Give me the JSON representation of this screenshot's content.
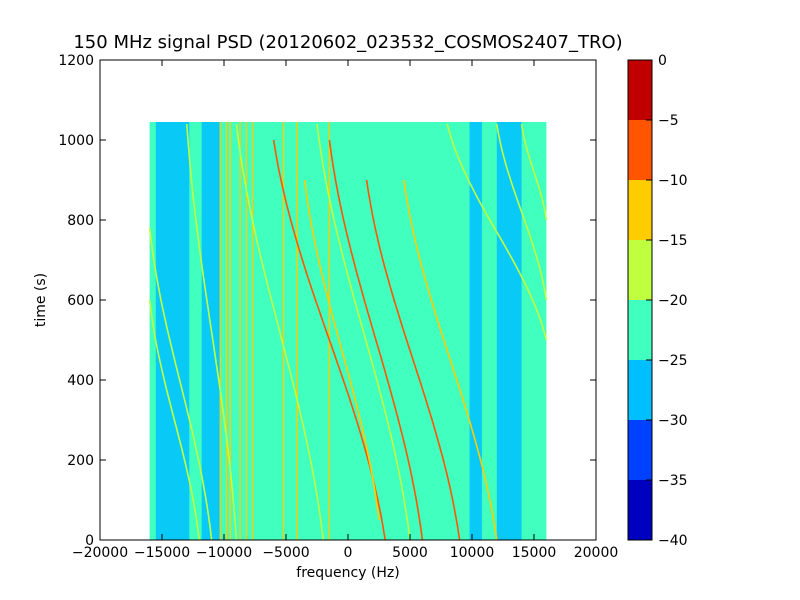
{
  "chart_data": {
    "type": "heatmap",
    "title": "150 MHz signal PSD (20120602_023532_COSMOS2407_TRO)",
    "xlabel": "frequency (Hz)",
    "ylabel": "time (s)",
    "xlim": [
      -20000,
      20000
    ],
    "ylim": [
      0,
      1200
    ],
    "data_extent": {
      "x": [
        -16000,
        16000
      ],
      "y": [
        0,
        1045
      ]
    },
    "xticks": [
      -20000,
      -15000,
      -10000,
      -5000,
      0,
      5000,
      10000,
      15000,
      20000
    ],
    "xtick_labels": [
      "−20000",
      "−15000",
      "−10000",
      "−5000",
      "0",
      "5000",
      "10000",
      "15000",
      "20000"
    ],
    "yticks": [
      0,
      200,
      400,
      600,
      800,
      1000,
      1200
    ],
    "ytick_labels": [
      "0",
      "200",
      "400",
      "600",
      "800",
      "1000",
      "1200"
    ],
    "colormap": "jet",
    "colorbar": {
      "levels": [
        -40,
        -35,
        -30,
        -25,
        -20,
        -15,
        -10,
        -5,
        0
      ],
      "labels": [
        "−40",
        "−35",
        "−30",
        "−25",
        "−20",
        "−15",
        "−10",
        "−5",
        "0"
      ],
      "colors": [
        "#0000bf",
        "#0040ff",
        "#00bfff",
        "#40ffbf",
        "#bfff40",
        "#ffcc00",
        "#ff5500",
        "#c00000"
      ]
    },
    "background_level_center": -22.5,
    "background_level_edges": -27.5,
    "vertical_lines_hz": [
      -10300,
      -9800,
      -9500,
      -8700,
      -8200,
      -7700,
      -5200,
      -4100,
      -1500
    ],
    "doppler_tracks": [
      {
        "f_at_top": -6000,
        "t_top": 1000,
        "f_at_bottom": 3000,
        "t_bottom": 0,
        "level": -7.5
      },
      {
        "f_at_top": -1500,
        "t_top": 1000,
        "f_at_bottom": 6000,
        "t_bottom": 0,
        "level": -7.5
      },
      {
        "f_at_top": -3500,
        "t_top": 900,
        "f_at_bottom": 2500,
        "t_bottom": 50,
        "level": -12.5
      },
      {
        "f_at_top": 1500,
        "t_top": 900,
        "f_at_bottom": 9000,
        "t_bottom": 0,
        "level": -7.5
      },
      {
        "f_at_top": 4500,
        "t_top": 900,
        "f_at_bottom": 12000,
        "t_bottom": 0,
        "level": -12.5
      },
      {
        "f_at_top": -13000,
        "t_top": 1040,
        "f_at_bottom": -9000,
        "t_bottom": 0,
        "level": -17.5
      },
      {
        "f_at_top": -16000,
        "t_top": 780,
        "f_at_bottom": -11000,
        "t_bottom": 0,
        "level": -17.5
      },
      {
        "f_at_top": -16000,
        "t_top": 600,
        "f_at_bottom": -12000,
        "t_bottom": 0,
        "level": -17.5
      },
      {
        "f_at_top": -9000,
        "t_top": 1040,
        "f_at_bottom": -2000,
        "t_bottom": 0,
        "level": -17.5
      },
      {
        "f_at_top": -2500,
        "t_top": 1040,
        "f_at_bottom": 5000,
        "t_bottom": 0,
        "level": -17.5
      },
      {
        "f_at_top": 8000,
        "t_top": 1040,
        "f_at_bottom": 16000,
        "t_bottom": 500,
        "level": -17.5
      },
      {
        "f_at_top": 12000,
        "t_top": 1040,
        "f_at_bottom": 16000,
        "t_bottom": 600,
        "level": -17.5
      },
      {
        "f_at_top": 14000,
        "t_top": 1040,
        "f_at_bottom": 16000,
        "t_bottom": 800,
        "level": -17.5
      }
    ]
  }
}
